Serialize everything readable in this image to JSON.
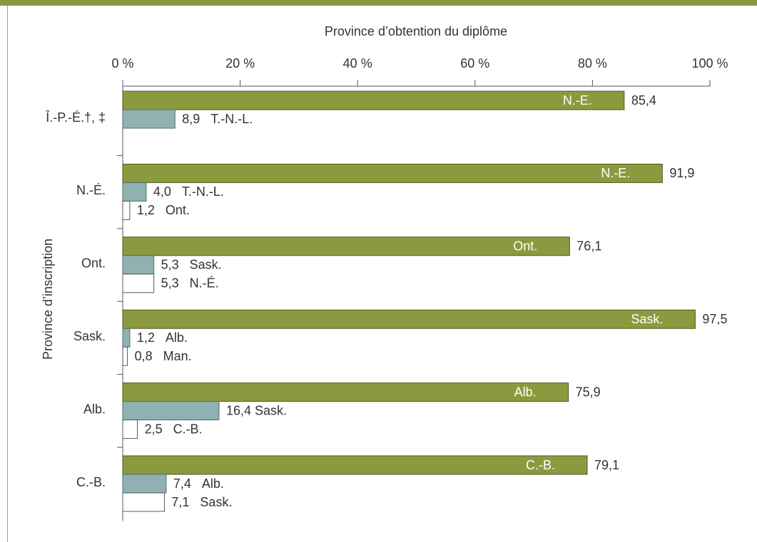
{
  "chart_data": {
    "type": "bar",
    "orientation": "horizontal",
    "x_label": "Province d’obtention du diplôme",
    "y_label": "Province d’inscription",
    "categories": [
      "Î.-P.-É.†, ‡",
      "N.-É.",
      "Ont.",
      "Sask.",
      "Alb.",
      "C.-B."
    ],
    "xlim": [
      0,
      100
    ],
    "xticks": [
      {
        "value": 0,
        "label": "0 %"
      },
      {
        "value": 20,
        "label": "20 %"
      },
      {
        "value": 40,
        "label": "40 %"
      },
      {
        "value": 60,
        "label": "60 %"
      },
      {
        "value": 80,
        "label": "80 %"
      },
      {
        "value": 100,
        "label": "100 %"
      }
    ],
    "series": [
      {
        "color": "#8b9a3e",
        "values": [
          85.4,
          91.9,
          76.1,
          97.5,
          75.9,
          79.1
        ],
        "value_labels": [
          "85,4",
          "91,9",
          "76,1",
          "97,5",
          "75,9",
          "79,1"
        ],
        "bar_labels": [
          "N.-E.",
          "N.-E.",
          "Ont.",
          "Sask.",
          "Alb.",
          "C.-B."
        ]
      },
      {
        "color": "#8fb1b1",
        "values": [
          8.9,
          4.0,
          5.3,
          1.2,
          16.4,
          7.4
        ],
        "value_labels": [
          "8,9",
          "4,0",
          "5,3",
          "1,2",
          "16,4",
          "7,4"
        ],
        "bar_labels": [
          "T.-N.-L.",
          "T.-N.-L.",
          "Sask.",
          "Alb.",
          "Sask.",
          "Alb."
        ]
      },
      {
        "color": "#ffffff",
        "values": [
          null,
          1.2,
          5.3,
          0.8,
          2.5,
          7.1
        ],
        "value_labels": [
          null,
          "1,2",
          "5,3",
          "0,8",
          "2,5",
          "7,1"
        ],
        "bar_labels": [
          null,
          "Ont.",
          "N.-É.",
          "Man.",
          "C.-B.",
          "Sask."
        ]
      }
    ]
  }
}
